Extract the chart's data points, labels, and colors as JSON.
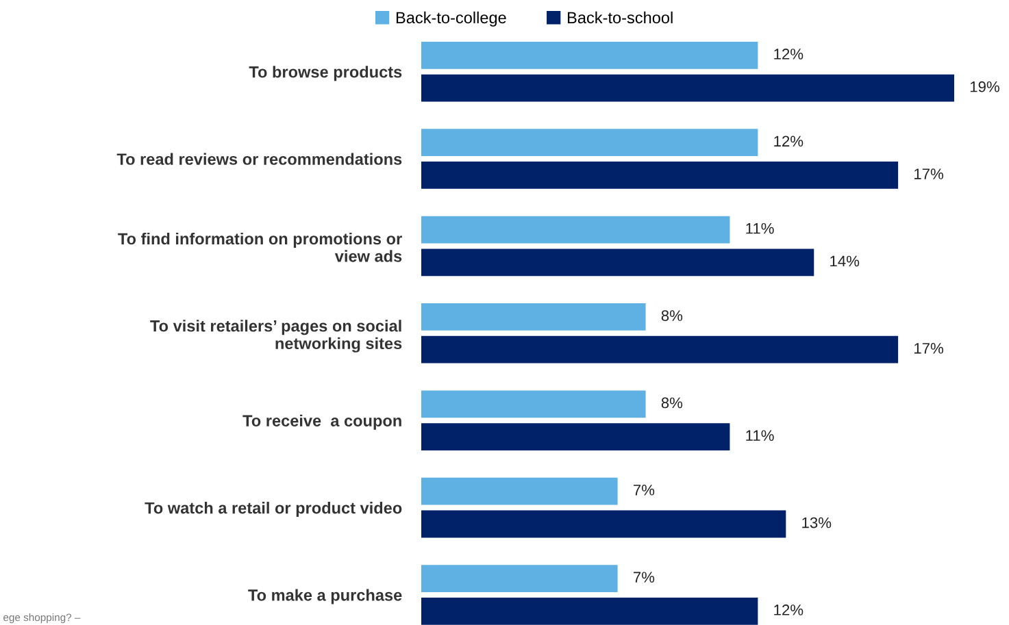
{
  "chart_data": {
    "type": "bar",
    "orientation": "horizontal",
    "categories": [
      "To browse products",
      "To read reviews or recommendations",
      "To find information on promotions or\nview ads",
      "To visit retailers’ pages on social\nnetworking sites",
      "To receive  a coupon",
      "To watch a retail or product video",
      "To make a purchase"
    ],
    "series": [
      {
        "name": "Back-to-college",
        "color": "#5eb1e2",
        "values": [
          12,
          12,
          11,
          8,
          8,
          7,
          7
        ],
        "value_labels": [
          "12%",
          "12%",
          "11%",
          "8%",
          "8%",
          "7%",
          "7%"
        ]
      },
      {
        "name": "Back-to-school",
        "color": "#012169",
        "values": [
          19,
          17,
          14,
          17,
          11,
          13,
          12
        ],
        "value_labels": [
          "19%",
          "17%",
          "14%",
          "17%",
          "11%",
          "13%",
          "12%"
        ]
      }
    ],
    "legend": "top",
    "grid": false,
    "tick_labels": "y",
    "annotations": [
      "ege shopping? –"
    ]
  }
}
